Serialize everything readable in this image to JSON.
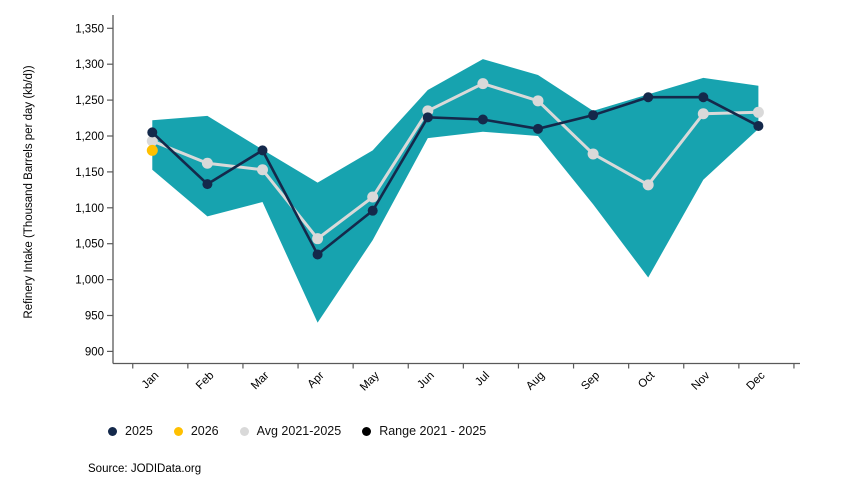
{
  "chart_data": {
    "type": "line",
    "title": "",
    "xlabel": "",
    "ylabel": "Refinery Intake (Thousand Barrels per day (kb/d))",
    "categories": [
      "Jan",
      "Feb",
      "Mar",
      "Apr",
      "May",
      "Jun",
      "Jul",
      "Aug",
      "Sep",
      "Oct",
      "Nov",
      "Dec"
    ],
    "ylim": [
      900,
      1350
    ],
    "ytick_step": 50,
    "grid": false,
    "legend_position": "bottom",
    "series": [
      {
        "name": "Range 2021 - 2025",
        "type": "band",
        "color": "#17A3AF",
        "upper": [
          1222,
          1228,
          1181,
          1135,
          1180,
          1264,
          1307,
          1285,
          1235,
          1258,
          1281,
          1270
        ],
        "lower": [
          1153,
          1088,
          1108,
          940,
          1055,
          1197,
          1206,
          1200,
          1105,
          1003,
          1139,
          1210
        ]
      },
      {
        "name": "Avg 2021-2025",
        "type": "line",
        "color": "#D9D9D9",
        "values": [
          1193,
          1162,
          1153,
          1057,
          1115,
          1235,
          1273,
          1249,
          1175,
          1132,
          1231,
          1233
        ]
      },
      {
        "name": "2025",
        "type": "line",
        "color": "#14294B",
        "values": [
          1205,
          1133,
          1180,
          1035,
          1096,
          1226,
          1223,
          1210,
          1229,
          1254,
          1254,
          1214
        ]
      },
      {
        "name": "2026",
        "type": "points",
        "color": "#FFC000",
        "values": [
          1180,
          null,
          null,
          null,
          null,
          null,
          null,
          null,
          null,
          null,
          null,
          null
        ]
      }
    ],
    "legend": [
      {
        "label": "2025",
        "color": "#14294B"
      },
      {
        "label": "2026",
        "color": "#FFC000"
      },
      {
        "label": "Avg 2021-2025",
        "color": "#D9D9D9"
      },
      {
        "label": "Range 2021 - 2025",
        "color": "#000000"
      }
    ]
  },
  "footer": {
    "source": "Source: JODIData.org"
  }
}
